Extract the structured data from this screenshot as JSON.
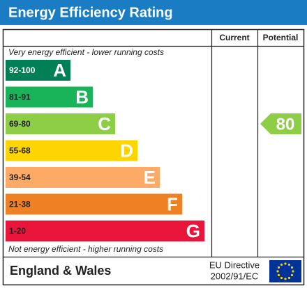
{
  "header": {
    "title": "Energy Efficiency Rating"
  },
  "columns": [
    "Current",
    "Potential"
  ],
  "top_note": "Very energy efficient - lower running costs",
  "bands": [
    {
      "range": "92-100",
      "letter": "A",
      "color": "#008054"
    },
    {
      "range": "81-91",
      "letter": "B",
      "color": "#19b459"
    },
    {
      "range": "69-80",
      "letter": "C",
      "color": "#8dce46"
    },
    {
      "range": "55-68",
      "letter": "D",
      "color": "#ffd500"
    },
    {
      "range": "39-54",
      "letter": "E",
      "color": "#fcaa65"
    },
    {
      "range": "21-38",
      "letter": "F",
      "color": "#ef8023"
    },
    {
      "range": "1-20",
      "letter": "G",
      "color": "#e9153b"
    }
  ],
  "bottom_note": "Not energy efficient - higher running costs",
  "potential": {
    "value": 80
  },
  "footer": {
    "region": "England & Wales",
    "directive": [
      "EU Directive",
      "2002/91/EC"
    ]
  }
}
